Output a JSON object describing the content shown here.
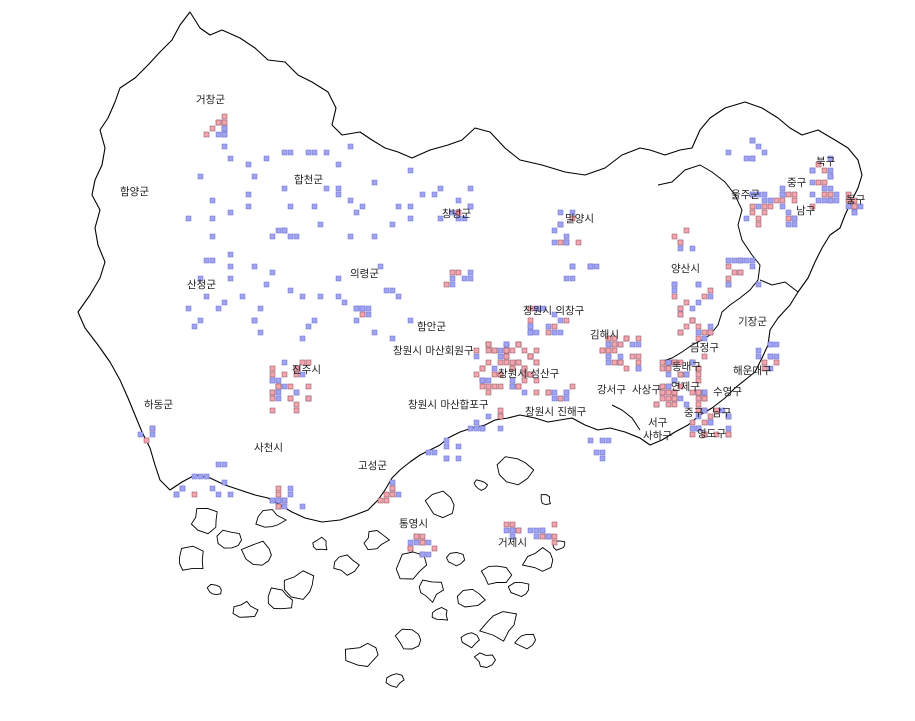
{
  "map": {
    "region_labels": [
      "거창군",
      "함양군",
      "합천군",
      "창녕군",
      "밀양시",
      "산청군",
      "의령군",
      "양산시",
      "울주군",
      "중구",
      "북구",
      "남구",
      "동구",
      "기장군",
      "함안군",
      "창원시 의창구",
      "창원시 마산회원구",
      "김해시",
      "진주시",
      "금정구",
      "동래구",
      "해운대구",
      "창원시 성산구",
      "강서구",
      "사상구",
      "연제구",
      "수영구",
      "하동군",
      "창원시 마산합포구",
      "창원시 진해구",
      "서구",
      "중구",
      "남구",
      "사하구",
      "영도구",
      "사천시",
      "고성군",
      "통영시",
      "거제시"
    ],
    "colors": {
      "low_density_cell": "#a0a4f0",
      "high_density_cell": "#f2a5ad",
      "boundary": "#000000",
      "background": "#ffffff"
    }
  }
}
